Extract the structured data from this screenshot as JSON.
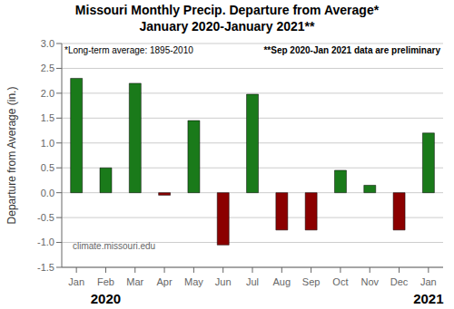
{
  "chart_data": {
    "type": "bar",
    "title": "Missouri Monthly Precip. Departure from Average*",
    "subtitle": "January 2020-January 2021**",
    "ylabel": "Departure from Average (in.)",
    "annotations": [
      "*Long-term average: 1895-2010",
      "**Sep 2020-Jan 2021 data are preliminary",
      "climate.missouri.edu",
      "2020",
      "2021"
    ],
    "categories": [
      "Jan",
      "Feb",
      "Mar",
      "Apr",
      "May",
      "Jun",
      "Jul",
      "Aug",
      "Sep",
      "Oct",
      "Nov",
      "Dec",
      "Jan"
    ],
    "values": [
      2.3,
      0.5,
      2.2,
      -0.05,
      1.45,
      -1.05,
      1.98,
      -0.75,
      -0.75,
      0.45,
      0.15,
      -0.75,
      1.2
    ],
    "colors": [
      "#1a7a1a",
      "#1a7a1a",
      "#1a7a1a",
      "#8b0000",
      "#1a7a1a",
      "#8b0000",
      "#1a7a1a",
      "#8b0000",
      "#8b0000",
      "#1a7a1a",
      "#1a7a1a",
      "#8b0000",
      "#1a7a1a"
    ],
    "ylim": [
      -1.5,
      3.0
    ],
    "yticks": [
      -1.5,
      {
        "value": -1.0,
        "label": "-1.0"
      },
      -0.5,
      {
        "value": 0,
        "label": "0.0"
      },
      0.5,
      {
        "value": 1,
        "label": "1.0"
      },
      1.5,
      {
        "value": 2,
        "label": "2.0"
      },
      2.5,
      {
        "value": 3,
        "label": "3.0"
      }
    ],
    "grid": true
  }
}
